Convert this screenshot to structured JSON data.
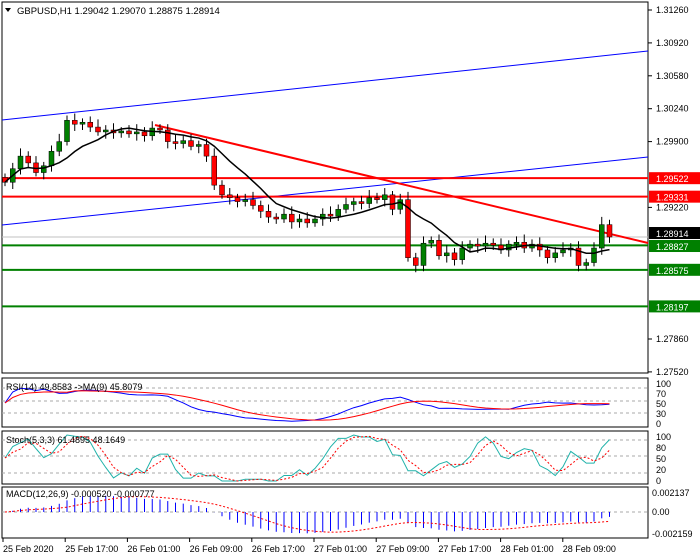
{
  "header": {
    "symbol": "GBPUSD,H1",
    "open": "1.29042",
    "high": "1.29070",
    "low": "1.28875",
    "close": "1.28914"
  },
  "chart_data": {
    "type": "candlestick",
    "price_ticks": [
      "1.31260",
      "1.30920",
      "1.30580",
      "1.30240",
      "1.29900",
      "1.29220",
      "1.27860",
      "1.27520"
    ],
    "price_range": [
      1.2752,
      1.3126
    ],
    "time_labels": [
      "25 Feb 2020",
      "25 Feb 17:00",
      "26 Feb 01:00",
      "26 Feb 09:00",
      "26 Feb 17:00",
      "27 Feb 01:00",
      "27 Feb 09:00",
      "27 Feb 17:00",
      "28 Feb 01:00",
      "28 Feb 09:00"
    ],
    "closes": [
      1.2948,
      1.2962,
      1.2975,
      1.2968,
      1.2958,
      1.2965,
      1.298,
      1.299,
      1.3012,
      1.3008,
      1.301,
      1.3005,
      1.3,
      1.3002,
      1.2999,
      1.3001,
      1.2998,
      1.3,
      1.2996,
      1.3004,
      1.3002,
      1.299,
      1.2988,
      1.2991,
      1.2985,
      1.2987,
      1.2975,
      1.2945,
      1.2935,
      1.2932,
      1.2928,
      1.293,
      1.2924,
      1.2918,
      1.2912,
      1.291,
      1.2915,
      1.2907,
      1.291,
      1.2906,
      1.291,
      1.2915,
      1.2913,
      1.292,
      1.2925,
      1.2928,
      1.2926,
      1.2932,
      1.293,
      1.2935,
      1.292,
      1.293,
      1.287,
      1.2862,
      1.2885,
      1.2888,
      1.2872,
      1.2875,
      1.2868,
      1.288,
      1.2884,
      1.2882,
      1.2885,
      1.2883,
      1.2878,
      1.2884,
      1.2886,
      1.288,
      1.2884,
      1.2878,
      1.287,
      1.2875,
      1.2878,
      1.288,
      1.2862,
      1.2865,
      1.288,
      1.29042,
      1.28914
    ],
    "levels": [
      {
        "value": "1.29522",
        "color": "#ff0000"
      },
      {
        "value": "1.29331",
        "color": "#ff0000"
      },
      {
        "value": "1.28914",
        "color": "#000000",
        "current": true
      },
      {
        "value": "1.28827",
        "color": "#008000"
      },
      {
        "value": "1.28575",
        "color": "#008000"
      },
      {
        "value": "1.28197",
        "color": "#008000"
      }
    ],
    "colors": {
      "bull": "#008000",
      "bear": "#ff0000",
      "ma": "#000000",
      "channel": "#0000ff",
      "trend": "#ff0000"
    },
    "rsi": {
      "title": "RSI(14) 49.8583  ->MA(9) 45.8079",
      "ticks": [
        "100",
        "70",
        "50",
        "30",
        "0"
      ]
    },
    "stoch": {
      "title": "Stoch(5,3,3) 61.4895 48.1649",
      "ticks": [
        "100",
        "80",
        "50",
        "20",
        "0"
      ]
    },
    "macd": {
      "title": "MACD(12,26,9) -0.000520 -0.000777",
      "ticks": [
        "0.002137",
        "0.00",
        "-0.002159"
      ]
    }
  }
}
